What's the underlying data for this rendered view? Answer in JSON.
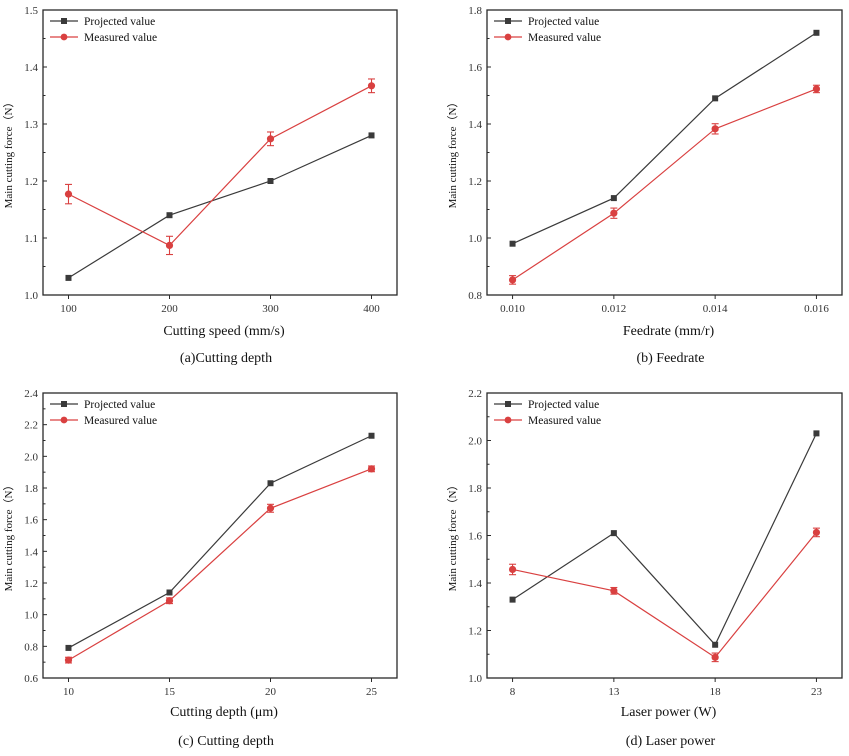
{
  "legend": {
    "projected_label": "Projected value",
    "measured_label": "Measured value"
  },
  "colors": {
    "projected": "#3a3a3a",
    "measured": "#d94040"
  },
  "chart_data": [
    {
      "id": "a",
      "type": "line",
      "caption": "(a)Cutting depth",
      "xlabel": "Cutting speed    (mm/s)",
      "ylabel": "Main cutting force（N）",
      "categories": [
        "100",
        "200",
        "300",
        "400"
      ],
      "ylim": [
        1.0,
        1.5
      ],
      "yticks": [
        1.0,
        1.1,
        1.2,
        1.3,
        1.4,
        1.5
      ],
      "ytick_labels": [
        "1.0",
        "1.1",
        "1.2",
        "1.3",
        "1.4",
        "1.5"
      ],
      "legend_position": "top-left",
      "grid": false,
      "series": [
        {
          "name": "Projected value",
          "marker": "square",
          "values": [
            1.03,
            1.14,
            1.2,
            1.28
          ]
        },
        {
          "name": "Measured value",
          "marker": "circle",
          "values": [
            1.177,
            1.087,
            1.274,
            1.367
          ],
          "errors": [
            0.017,
            0.016,
            0.012,
            0.012
          ]
        }
      ]
    },
    {
      "id": "b",
      "type": "line",
      "caption": "(b) Feedrate",
      "xlabel": "Feedrate   (mm/r)",
      "ylabel": "Main cutting force（N）",
      "categories": [
        "0.010",
        "0.012",
        "0.014",
        "0.016"
      ],
      "ylim": [
        0.8,
        1.8
      ],
      "yticks": [
        0.8,
        1.0,
        1.2,
        1.4,
        1.6,
        1.8
      ],
      "ytick_labels": [
        "0.8",
        "1.0",
        "1.2",
        "1.4",
        "1.6",
        "1.8"
      ],
      "legend_position": "top-left",
      "grid": false,
      "series": [
        {
          "name": "Projected value",
          "marker": "square",
          "values": [
            0.98,
            1.14,
            1.49,
            1.72
          ]
        },
        {
          "name": "Measured value",
          "marker": "circle",
          "values": [
            0.853,
            1.087,
            1.383,
            1.523
          ],
          "errors": [
            0.015,
            0.018,
            0.018,
            0.013
          ]
        }
      ]
    },
    {
      "id": "c",
      "type": "line",
      "caption": "(c) Cutting depth",
      "xlabel": "Cutting depth     (μm)",
      "ylabel": "Main cutting force（N）",
      "categories": [
        "10",
        "15",
        "20",
        "25"
      ],
      "ylim": [
        0.6,
        2.4
      ],
      "yticks": [
        0.6,
        0.8,
        1.0,
        1.2,
        1.4,
        1.6,
        1.8,
        2.0,
        2.2,
        2.4
      ],
      "ytick_labels": [
        "0.6",
        "0.8",
        "1.0",
        "1.2",
        "1.4",
        "1.6",
        "1.8",
        "2.0",
        "2.2",
        "2.4"
      ],
      "legend_position": "top-left",
      "grid": false,
      "series": [
        {
          "name": "Projected value",
          "marker": "square",
          "values": [
            0.79,
            1.14,
            1.83,
            2.13
          ]
        },
        {
          "name": "Measured value",
          "marker": "circle",
          "values": [
            0.713,
            1.088,
            1.672,
            1.921
          ],
          "errors": [
            0.018,
            0.018,
            0.025,
            0.018
          ]
        }
      ]
    },
    {
      "id": "d",
      "type": "line",
      "caption": "(d) Laser power",
      "xlabel": "Laser power    (W)",
      "ylabel": "Main cutting force（N）",
      "categories": [
        "8",
        "13",
        "18",
        "23"
      ],
      "ylim": [
        1.0,
        2.2
      ],
      "yticks": [
        1.0,
        1.2,
        1.4,
        1.6,
        1.8,
        2.0,
        2.2
      ],
      "ytick_labels": [
        "1.0",
        "1.2",
        "1.4",
        "1.6",
        "1.8",
        "2.0",
        "2.2"
      ],
      "legend_position": "top-left",
      "grid": false,
      "series": [
        {
          "name": "Projected value",
          "marker": "square",
          "values": [
            1.33,
            1.61,
            1.14,
            2.03
          ]
        },
        {
          "name": "Measured value",
          "marker": "circle",
          "values": [
            1.457,
            1.367,
            1.087,
            1.613
          ],
          "errors": [
            0.022,
            0.014,
            0.018,
            0.018
          ]
        }
      ]
    }
  ]
}
